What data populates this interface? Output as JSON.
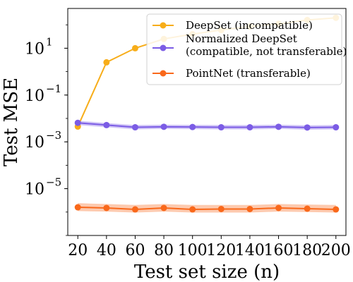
{
  "chart_data": {
    "type": "line",
    "title": "",
    "xlabel": "Test set size (n)",
    "ylabel": "Test MSE",
    "y_scale": "log",
    "x": [
      20,
      40,
      60,
      80,
      100,
      120,
      140,
      160,
      180,
      200
    ],
    "xticks": [
      "20",
      "40",
      "60",
      "80",
      "100",
      "120",
      "140",
      "160",
      "180",
      "200"
    ],
    "yticks": [
      {
        "value": 10,
        "base": "10",
        "exp": "1"
      },
      {
        "value": 0.1,
        "base": "10",
        "exp": "−1"
      },
      {
        "value": 0.001,
        "base": "10",
        "exp": "−3"
      },
      {
        "value": 1e-05,
        "base": "10",
        "exp": "−5"
      }
    ],
    "xlim": [
      13,
      207
    ],
    "ylim": [
      1e-07,
      500
    ],
    "grid": false,
    "legend_position": "top-right",
    "series": [
      {
        "name": "DeepSet (incompatible)",
        "color": "#f7ad19",
        "values": [
          0.0045,
          2.5,
          10,
          25,
          40,
          60,
          85,
          110,
          160,
          200
        ],
        "band_lower": null,
        "band_upper": null
      },
      {
        "name": "Normalized DeepSet\n(compatible, not transferable)",
        "color": "#7b5ce5",
        "values": [
          0.0065,
          0.0052,
          0.0042,
          0.0044,
          0.0043,
          0.0042,
          0.0042,
          0.0044,
          0.0041,
          0.0042
        ],
        "band_lower": [
          0.0052,
          0.0042,
          0.0034,
          0.0036,
          0.0035,
          0.0034,
          0.0034,
          0.0036,
          0.0033,
          0.0034
        ],
        "band_upper": [
          0.008,
          0.0064,
          0.0052,
          0.0054,
          0.0053,
          0.0052,
          0.0052,
          0.0054,
          0.0051,
          0.0052
        ]
      },
      {
        "name": "PointNet (transferable)",
        "color": "#f9681a",
        "values": [
          1.6e-06,
          1.5e-06,
          1.3e-06,
          1.5e-06,
          1.3e-06,
          1.35e-06,
          1.35e-06,
          1.5e-06,
          1.4e-06,
          1.3e-06
        ],
        "band_lower": [
          1.1e-06,
          1.05e-06,
          9.5e-07,
          1.05e-06,
          9.5e-07,
          9.5e-07,
          9.5e-07,
          1.05e-06,
          1e-06,
          9.5e-07
        ],
        "band_upper": [
          2.4e-06,
          2.2e-06,
          2e-06,
          2.2e-06,
          2e-06,
          2e-06,
          2e-06,
          2.2e-06,
          2.1e-06,
          2e-06
        ]
      }
    ]
  }
}
